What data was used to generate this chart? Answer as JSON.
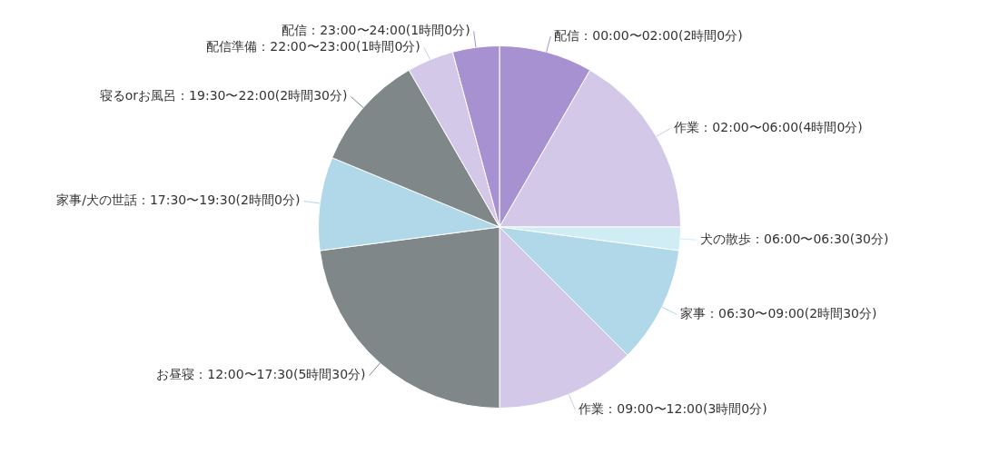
{
  "chart_data": {
    "type": "pie",
    "categories": [
      "配信：00:00〜02:00(2時間0分)",
      "作業：02:00〜06:00(4時間0分)",
      "犬の散歩：06:00〜06:30(30分)",
      "家事：06:30〜09:00(2時間30分)",
      "作業：09:00〜12:00(3時間0分)",
      "お昼寝：12:00〜17:30(5時間30分)",
      "家事/犬の世話：17:30〜19:30(2時間0分)",
      "寝るorお風呂：19:30〜22:00(2時間30分)",
      "配信準備：22:00〜23:00(1時間0分)",
      "配信：23:00〜24:00(1時間0分)"
    ],
    "values": [
      2,
      4,
      0.5,
      2.5,
      3,
      5.5,
      2,
      2.5,
      1,
      1
    ],
    "colors": [
      "#a891d0",
      "#d4c8e8",
      "#d0ecf5",
      "#b0d8e8",
      "#d4c8e8",
      "#7f8788",
      "#b0d8e8",
      "#7f8788",
      "#d4c8e8",
      "#a891d0"
    ]
  }
}
